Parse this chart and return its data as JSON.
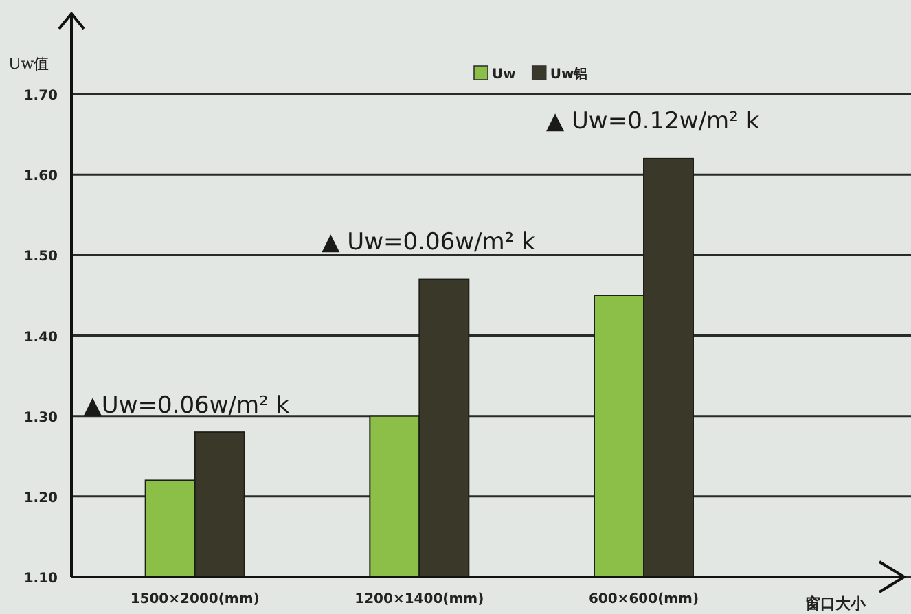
{
  "chart_data": {
    "type": "bar",
    "ylabel": "Uw值",
    "xlabel": "窗口大小",
    "categories": [
      "1500×2000(mm)",
      "1200×1400(mm)",
      "600×600(mm)"
    ],
    "series": [
      {
        "name": "Uw",
        "color": "#8cbf48",
        "values": [
          1.22,
          1.3,
          1.45
        ]
      },
      {
        "name": "Uw铝",
        "color": "#3a3829",
        "values": [
          1.28,
          1.47,
          1.62
        ]
      }
    ],
    "ylim": [
      1.1,
      1.8
    ],
    "yticks": [
      {
        "value": 1.1,
        "label": "1.10"
      },
      {
        "value": 1.2,
        "label": "1.20"
      },
      {
        "value": 1.3,
        "label": "1.30"
      },
      {
        "value": 1.4,
        "label": "1.40"
      },
      {
        "value": 1.5,
        "label": "1.50"
      },
      {
        "value": 1.6,
        "label": "1.60"
      },
      {
        "value": 1.7,
        "label": "1.70"
      }
    ],
    "grid": "y",
    "legend": "top",
    "annotations": [
      "▲Uw=0.06w/m² k",
      "▲ Uw=0.06w/m² k",
      "▲ Uw=0.12w/m² k"
    ]
  }
}
